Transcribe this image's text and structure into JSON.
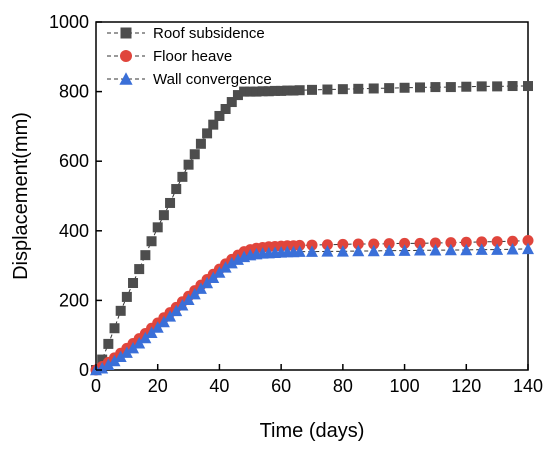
{
  "chart_data": {
    "type": "scatter",
    "xlabel": "Time (days)",
    "ylabel": "Displacement(mm)",
    "xlim": [
      0,
      140
    ],
    "ylim": [
      0,
      1000
    ],
    "xticks": [
      0,
      20,
      40,
      60,
      80,
      100,
      120,
      140
    ],
    "yticks": [
      0,
      200,
      400,
      600,
      800,
      1000
    ],
    "grid": false,
    "legend_position": "top-left",
    "x": [
      0,
      2,
      4,
      6,
      8,
      10,
      12,
      14,
      16,
      18,
      20,
      22,
      24,
      26,
      28,
      30,
      32,
      34,
      36,
      38,
      40,
      42,
      44,
      46,
      48,
      50,
      52,
      54,
      56,
      58,
      60,
      62,
      64,
      66,
      70,
      75,
      80,
      85,
      90,
      95,
      100,
      105,
      110,
      115,
      120,
      125,
      130,
      135,
      140
    ],
    "series": [
      {
        "name": "Roof subsidence",
        "color": "#4d4d4d",
        "marker": "square",
        "values": [
          0,
          30,
          75,
          120,
          170,
          210,
          250,
          290,
          330,
          370,
          410,
          445,
          480,
          520,
          555,
          590,
          620,
          650,
          680,
          705,
          730,
          750,
          770,
          790,
          800,
          800,
          800,
          801,
          801,
          802,
          802,
          803,
          803,
          804,
          805,
          806,
          807,
          808,
          809,
          810,
          811,
          812,
          813,
          813,
          814,
          815,
          815,
          816,
          816
        ]
      },
      {
        "name": "Floor heave",
        "color": "#e0453c",
        "marker": "circle",
        "values": [
          0,
          10,
          22,
          35,
          48,
          62,
          76,
          90,
          105,
          120,
          135,
          150,
          165,
          180,
          196,
          212,
          228,
          244,
          260,
          275,
          290,
          305,
          318,
          330,
          340,
          346,
          350,
          352,
          354,
          355,
          356,
          357,
          357,
          358,
          359,
          360,
          361,
          362,
          362,
          363,
          364,
          364,
          365,
          366,
          367,
          368,
          369,
          370,
          372
        ]
      },
      {
        "name": "Wall convergence",
        "color": "#3a6fd8",
        "marker": "triangle",
        "values": [
          0,
          5,
          15,
          26,
          38,
          50,
          63,
          77,
          92,
          107,
          122,
          138,
          154,
          170,
          186,
          202,
          218,
          234,
          250,
          265,
          280,
          295,
          307,
          317,
          325,
          330,
          333,
          335,
          336,
          337,
          338,
          339,
          339,
          340,
          340,
          341,
          341,
          342,
          342,
          343,
          343,
          344,
          344,
          345,
          345,
          346,
          346,
          347,
          348
        ]
      }
    ]
  }
}
